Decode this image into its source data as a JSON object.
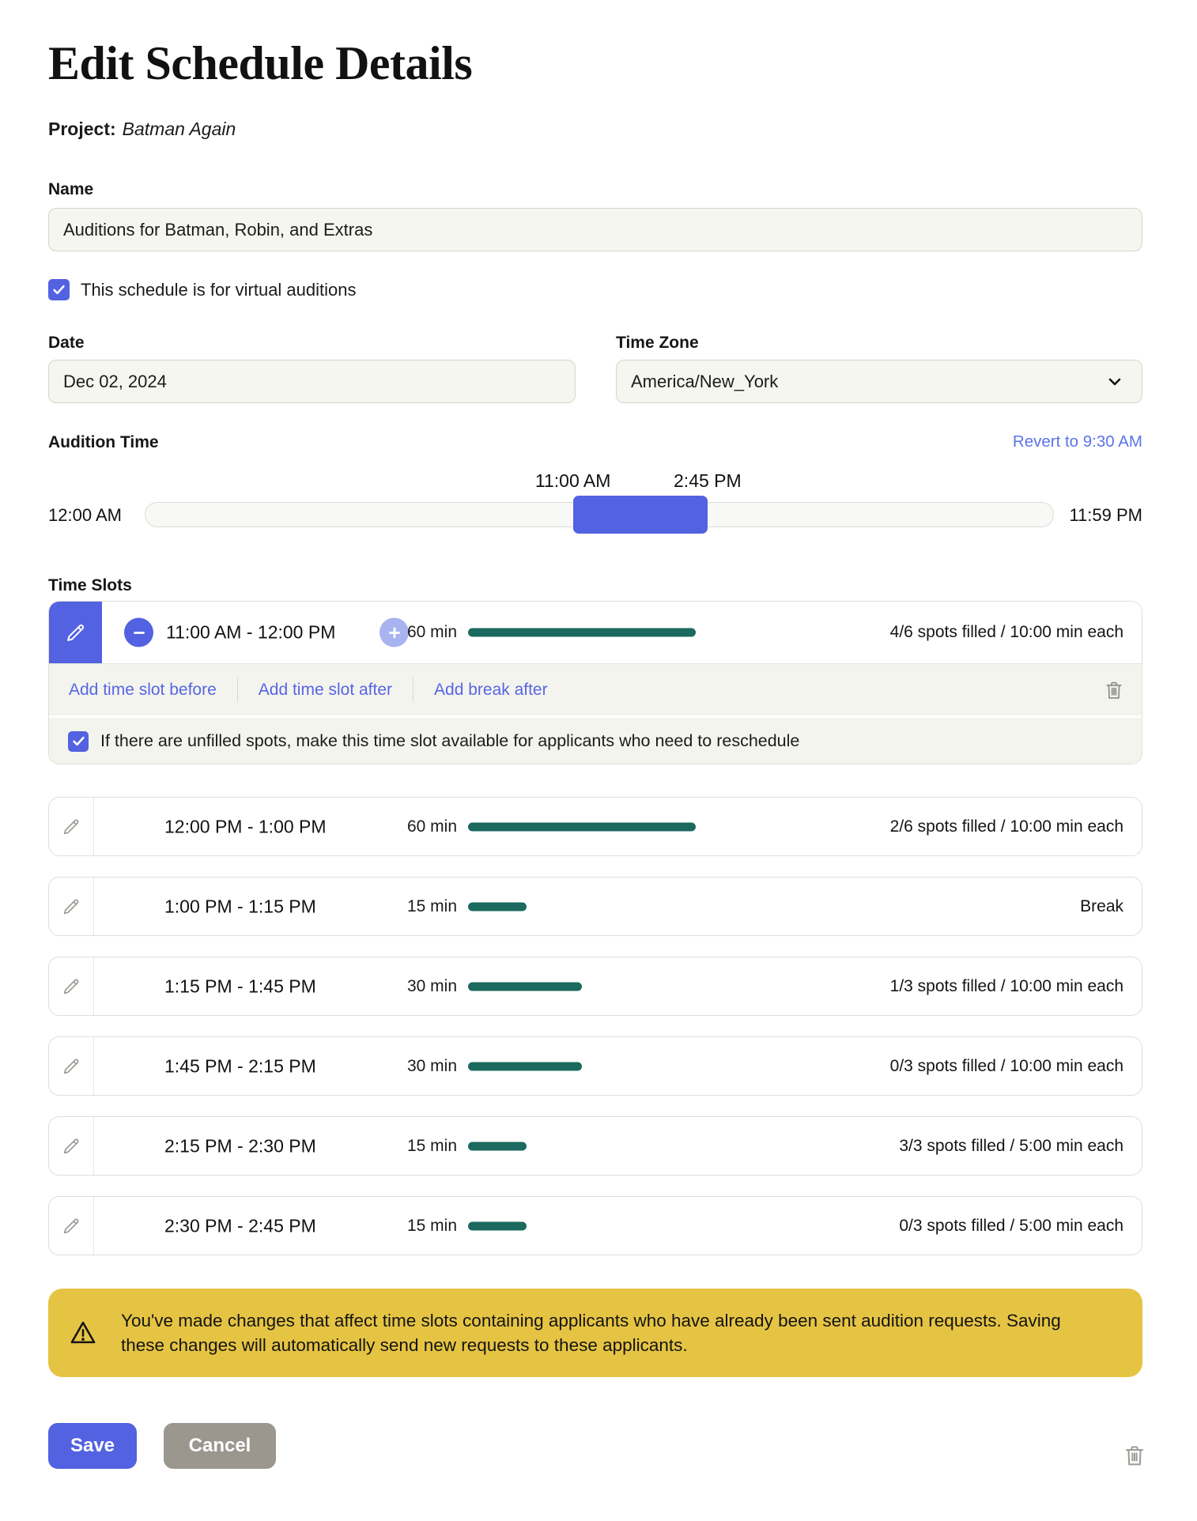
{
  "header": {
    "title": "Edit Schedule Details"
  },
  "project": {
    "label": "Project:",
    "value": "Batman Again"
  },
  "name": {
    "label": "Name",
    "value": "Auditions for Batman, Robin, and Extras"
  },
  "virtual": {
    "label": "This schedule is for virtual auditions",
    "checked": true
  },
  "date": {
    "label": "Date",
    "value": "Dec 02, 2024"
  },
  "timezone": {
    "label": "Time Zone",
    "value": "America/New_York"
  },
  "audition_time": {
    "label": "Audition Time",
    "revert": "Revert to 9:30 AM",
    "range_start": "11:00 AM",
    "range_end": "2:45 PM",
    "min": "12:00 AM",
    "max": "11:59 PM",
    "start_pct": 47.1,
    "end_pct": 61.9
  },
  "slots": {
    "label": "Time Slots",
    "expanded": {
      "time": "11:00 AM - 12:00 PM",
      "duration": "60 min",
      "minutes": 60,
      "status": "4/6 spots filled / 10:00 min each",
      "actions": [
        "Add time slot before",
        "Add time slot after",
        "Add break after"
      ],
      "checkbox_label": "If there are unfilled spots, make this time slot available for applicants who need to reschedule",
      "checked": true
    },
    "rows": [
      {
        "time": "12:00 PM - 1:00 PM",
        "duration": "60 min",
        "minutes": 60,
        "status": "2/6 spots filled / 10:00 min each"
      },
      {
        "time": "1:00 PM - 1:15 PM",
        "duration": "15 min",
        "minutes": 15,
        "status": "Break"
      },
      {
        "time": "1:15 PM - 1:45 PM",
        "duration": "30 min",
        "minutes": 30,
        "status": "1/3 spots filled / 10:00 min each"
      },
      {
        "time": "1:45 PM - 2:15 PM",
        "duration": "30 min",
        "minutes": 30,
        "status": "0/3 spots filled / 10:00 min each"
      },
      {
        "time": "2:15 PM - 2:30 PM",
        "duration": "15 min",
        "minutes": 15,
        "status": "3/3 spots filled / 5:00 min each"
      },
      {
        "time": "2:30 PM - 2:45 PM",
        "duration": "15 min",
        "minutes": 15,
        "status": "0/3 spots filled / 5:00 min each"
      }
    ]
  },
  "warning": "You've made changes that affect time slots containing applicants who have already been sent audition requests. Saving these changes will automatically send new requests to these applicants.",
  "buttons": {
    "save": "Save",
    "cancel": "Cancel"
  },
  "colors": {
    "accent": "#5362e1",
    "accent_light": "#a9b3f0",
    "link": "#5666e3",
    "revert_link": "#5b74e8",
    "teal": "#1b695f",
    "banner_bg": "#e6c443",
    "cancel_bg": "#9b978f"
  }
}
